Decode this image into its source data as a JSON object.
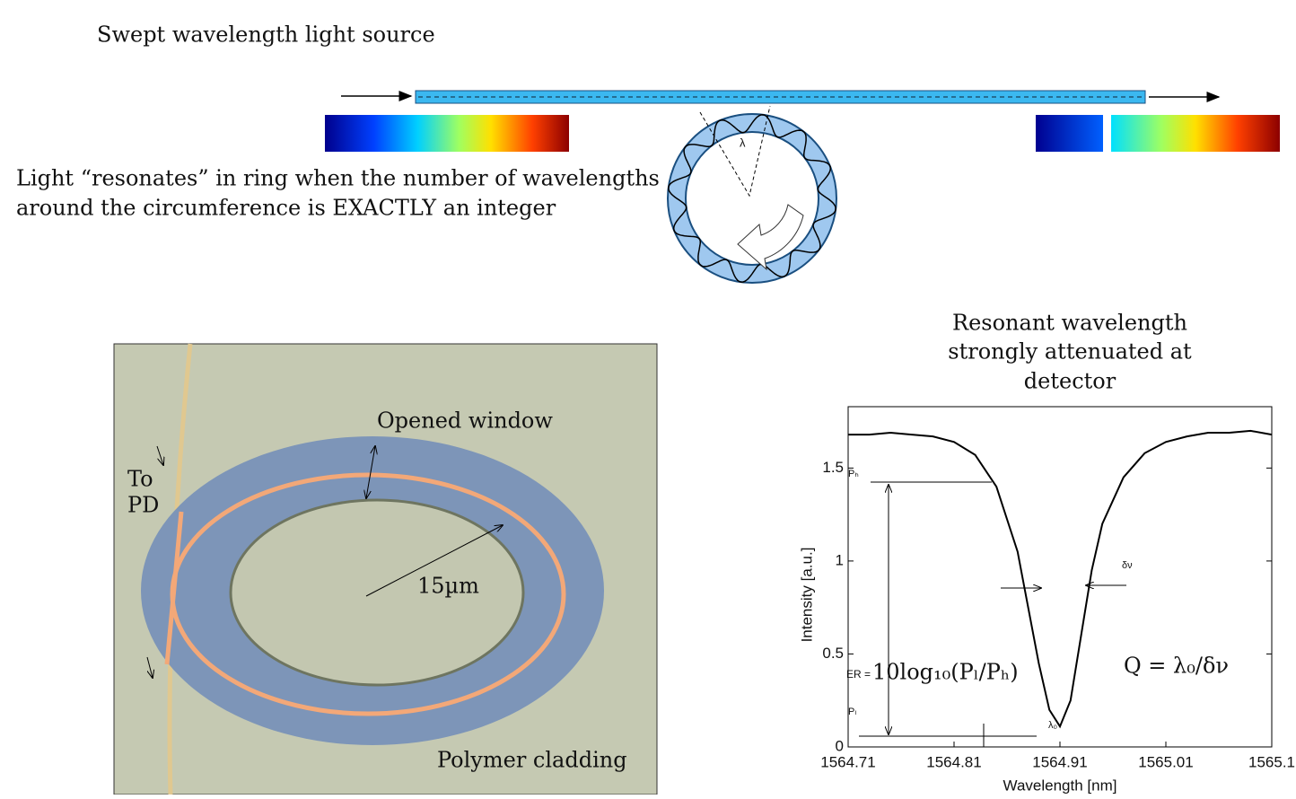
{
  "diagram": {
    "top_label": "Swept wavelength light source",
    "resonance_text": [
      "Light “resonates” in ring when the number of wavelengths",
      "around the circumference is EXACTLY an integer"
    ],
    "ring_label": "λ",
    "photo": {
      "opened_window": "Opened window",
      "to": "To",
      "pd": "PD",
      "radius": "15µm",
      "cladding": "Polymer cladding"
    },
    "chart_caption": [
      "Resonant wavelength",
      "strongly attenuated at",
      "detector"
    ]
  },
  "chart_data": {
    "type": "line",
    "xlabel": "Wavelength [nm]",
    "ylabel": "Intensity [a.u.]",
    "x": [
      1564.71,
      1564.73,
      1564.75,
      1564.77,
      1564.79,
      1564.81,
      1564.83,
      1564.85,
      1564.87,
      1564.88,
      1564.89,
      1564.9,
      1564.91,
      1564.92,
      1564.93,
      1564.94,
      1564.95,
      1564.97,
      1564.99,
      1565.01,
      1565.03,
      1565.05,
      1565.07,
      1565.09,
      1565.11
    ],
    "series": [
      {
        "color": "#000000",
        "values": [
          1.68,
          1.68,
          1.69,
          1.68,
          1.67,
          1.64,
          1.57,
          1.4,
          1.05,
          0.75,
          0.45,
          0.2,
          0.11,
          0.25,
          0.6,
          0.95,
          1.2,
          1.45,
          1.58,
          1.64,
          1.67,
          1.69,
          1.69,
          1.7,
          1.68
        ]
      }
    ],
    "xlim": [
      1564.71,
      1565.11
    ],
    "xticks": [
      1564.71,
      1564.81,
      1564.91,
      1565.01,
      {
        "value": 1565.11,
        "label": "1565.1"
      }
    ],
    "ylim": [
      0,
      1.83
    ],
    "yticks": [
      0,
      0.5,
      1,
      1.5
    ],
    "annotations": {
      "ph": "Pₕ",
      "pl": "Pₗ",
      "lambda0": "λ₀",
      "dnu": "δν",
      "er": "ER =",
      "er_formula": "10log₁₀(Pₗ/Pₕ)",
      "q_formula": "Q = λ₀/δν"
    }
  }
}
